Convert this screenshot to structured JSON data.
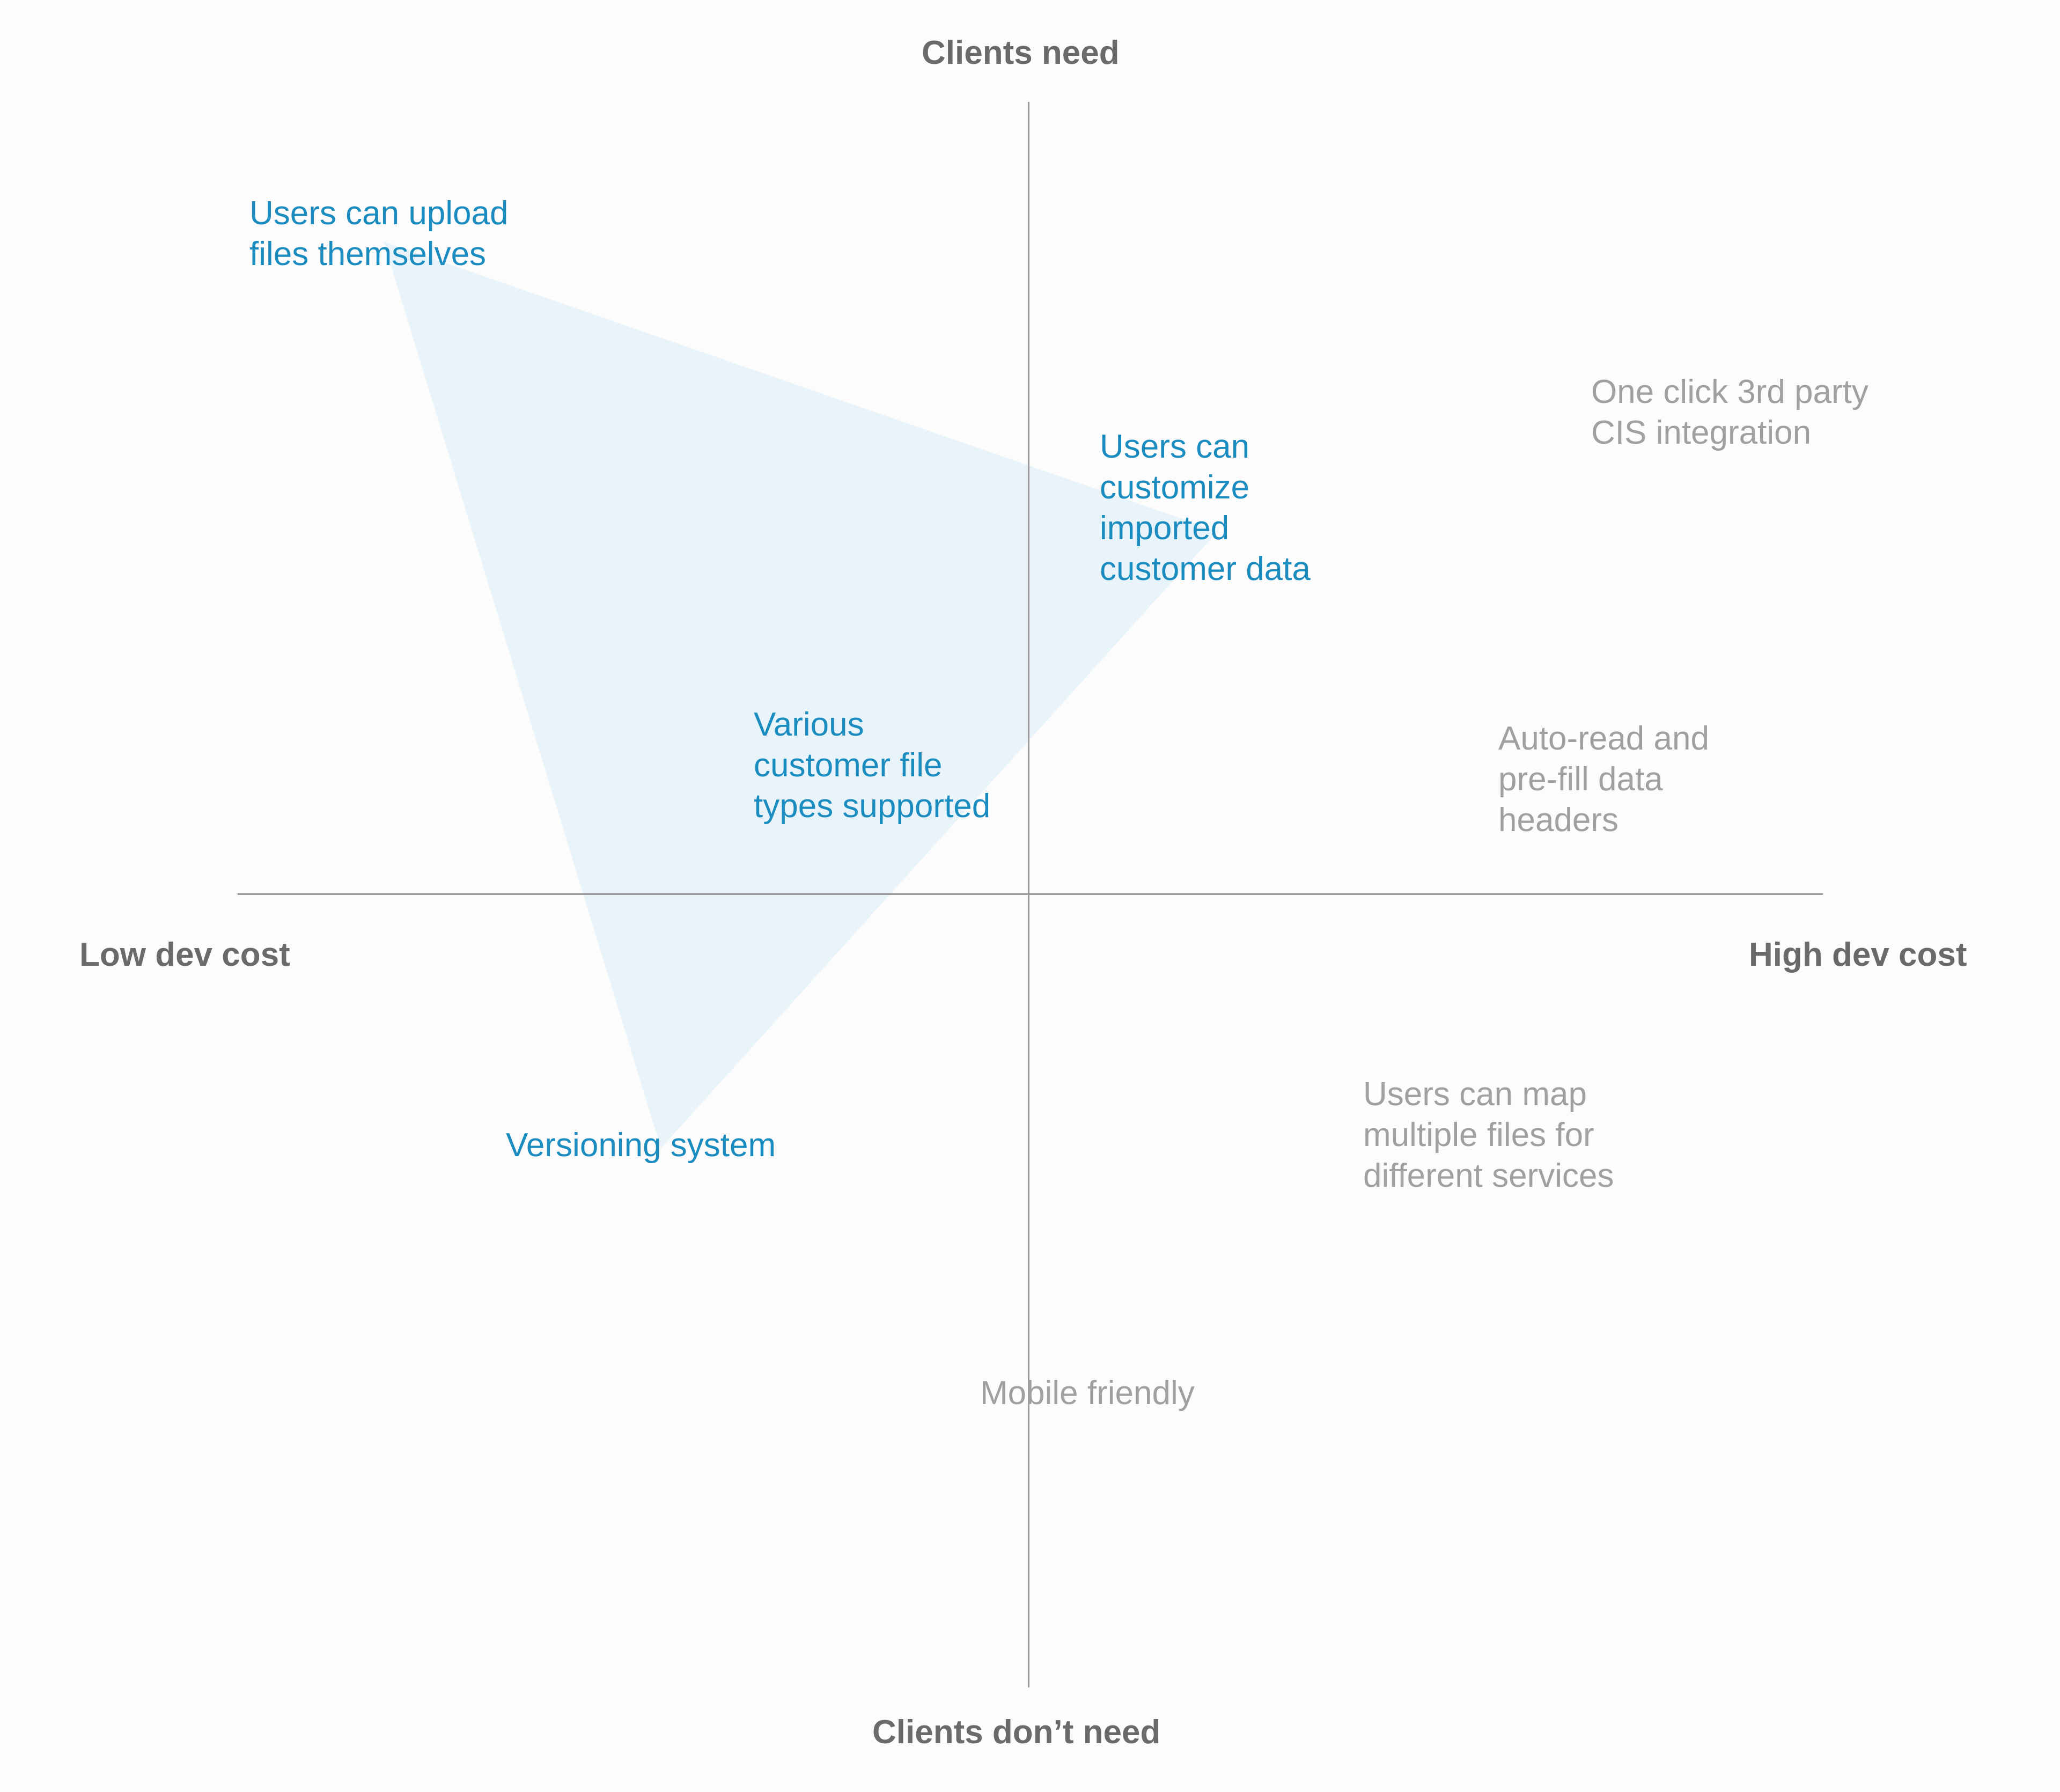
{
  "axes": {
    "top": "Clients need",
    "bottom": "Clients don’t need",
    "left": "Low dev cost",
    "right": "High dev cost"
  },
  "colors": {
    "highlight_text": "#1a8cc0",
    "highlight_fill": "#e8f4f9",
    "muted_text": "#a0a0a0",
    "axis_text": "#6a6a6a",
    "axis_line": "#9a9a9a",
    "background": "#fcfcfc"
  },
  "highlighted_items": [
    {
      "id": "upload",
      "lines": [
        "Users can upload",
        "files themselves"
      ]
    },
    {
      "id": "customize",
      "lines": [
        "Users can",
        "customize",
        "imported",
        "customer data"
      ]
    },
    {
      "id": "filetypes",
      "lines": [
        "Various",
        "customer file",
        "types supported"
      ]
    },
    {
      "id": "versioning",
      "lines": [
        "Versioning system"
      ]
    }
  ],
  "other_items": [
    {
      "id": "cis",
      "lines": [
        "One click 3rd party",
        "CIS integration"
      ]
    },
    {
      "id": "autoread",
      "lines": [
        "Auto-read and",
        "pre-fill data",
        "headers"
      ]
    },
    {
      "id": "map",
      "lines": [
        "Users can map",
        "multiple files for",
        "different services"
      ]
    },
    {
      "id": "mobile",
      "lines": [
        "Mobile friendly"
      ]
    }
  ]
}
